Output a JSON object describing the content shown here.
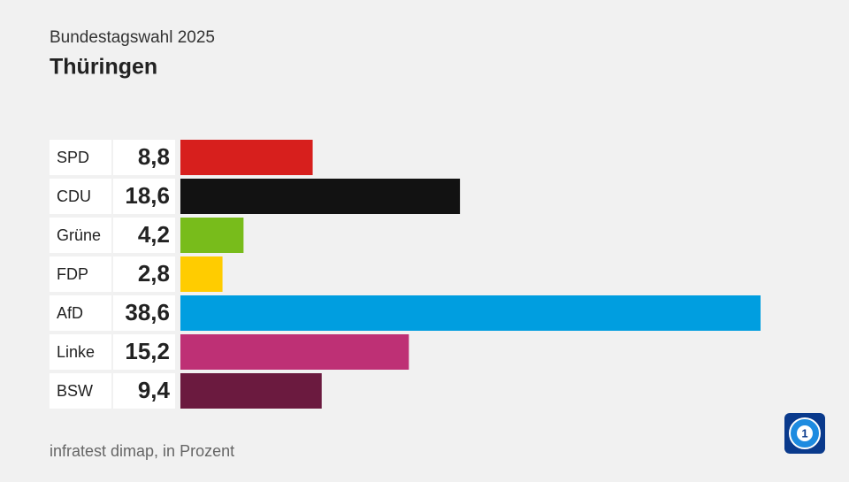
{
  "chart_data": {
    "type": "bar",
    "orientation": "horizontal",
    "subtitle": "Bundestagswahl 2025",
    "title": "Thüringen",
    "source": "infratest dimap, in Prozent",
    "categories": [
      "SPD",
      "CDU",
      "Grüne",
      "FDP",
      "AfD",
      "Linke",
      "BSW"
    ],
    "values": [
      8.8,
      18.6,
      4.2,
      2.8,
      38.6,
      15.2,
      9.4
    ],
    "value_labels": [
      "8,8",
      "18,6",
      "4,2",
      "2,8",
      "38,6",
      "15,2",
      "9,4"
    ],
    "colors": [
      "#d71f1d",
      "#121212",
      "#78bc1b",
      "#ffcc00",
      "#009ee0",
      "#be3075",
      "#6b1a3f"
    ]
  }
}
